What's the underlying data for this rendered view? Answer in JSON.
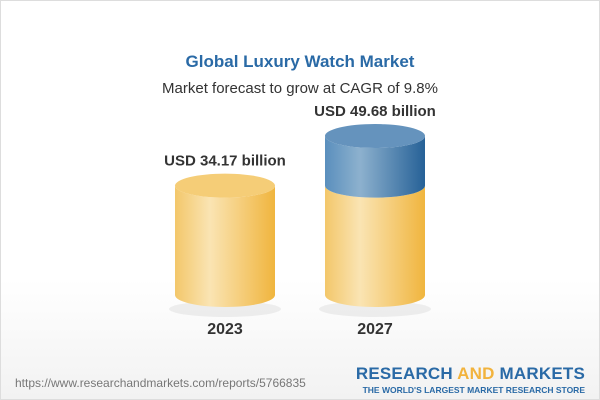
{
  "header": {
    "title": "Global Luxury Watch Market",
    "subtitle": "Market forecast to grow at CAGR of 9.8%"
  },
  "chart_data": {
    "type": "bar",
    "style": "3d-cylinder",
    "categories": [
      "2023",
      "2027"
    ],
    "values": [
      34.17,
      49.68
    ],
    "unit": "USD billion",
    "data_labels": [
      "USD 34.17 billion",
      "USD 49.68 billion"
    ],
    "colors": {
      "base": "#f2c766",
      "growth": "#4f86b6"
    },
    "grid": false
  },
  "footer": {
    "url": "https://www.researchandmarkets.com/reports/5766835",
    "logo_part1": "RESEARCH ",
    "logo_part2": "AND",
    "logo_part3": " MARKETS",
    "logo_tagline": "THE WORLD'S LARGEST MARKET RESEARCH STORE"
  }
}
